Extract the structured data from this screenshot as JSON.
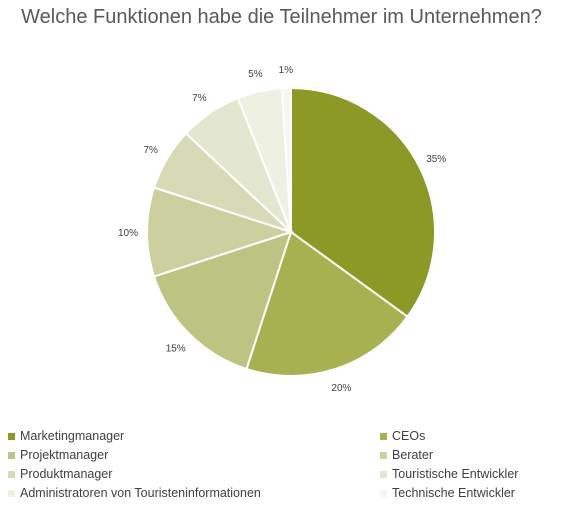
{
  "chart_data": {
    "type": "pie",
    "title": "Welche Funktionen habe die Teilnehmer im Unternehmen?",
    "categories": [
      "Marketingmanager",
      "CEOs",
      "Projektmanager",
      "Berater",
      "Produktmanager",
      "Touristische Entwickler",
      "Administratoren von Touristeninformationen",
      "Technische Entwickler"
    ],
    "values": [
      35,
      20,
      15,
      10,
      7,
      7,
      5,
      1
    ],
    "labels": [
      "35%",
      "20%",
      "15%",
      "10%",
      "7%",
      "7%",
      "5%",
      "1%"
    ],
    "colors": [
      "#8c9a25",
      "#a8b150",
      "#bdc482",
      "#ccd09f",
      "#d6dab6",
      "#e4e7cf",
      "#eef0e1",
      "#f5f6ef"
    ],
    "legend_position": "bottom"
  }
}
